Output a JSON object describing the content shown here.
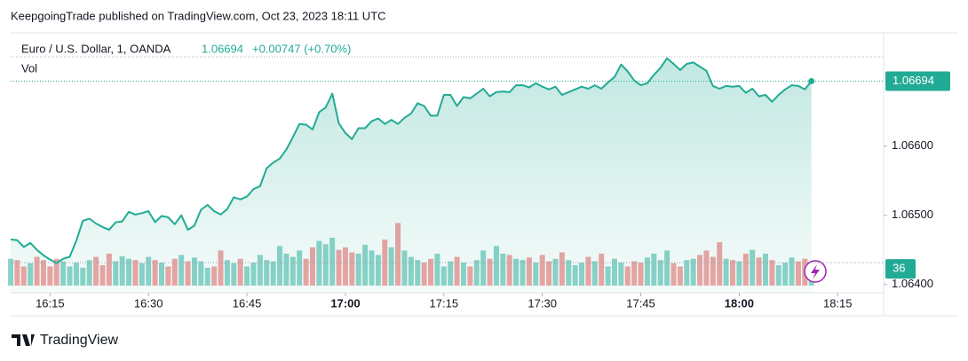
{
  "header": {
    "text": "KeepgoingTrade published on TradingView.com, Oct 23, 2023 18:11 UTC"
  },
  "footer": {
    "brand": "TradingView"
  },
  "chart_data": {
    "type": "area",
    "symbol": "Euro / U.S. Dollar, 1, OANDA",
    "last_price": "1.06694",
    "change": "+0.00747 (+0.70%)",
    "volume_label": "Vol",
    "color": "#22ab94",
    "x": [
      "16:09",
      "16:10",
      "16:11",
      "16:12",
      "16:13",
      "16:14",
      "16:15",
      "16:16",
      "16:17",
      "16:18",
      "16:19",
      "16:20",
      "16:21",
      "16:22",
      "16:23",
      "16:24",
      "16:25",
      "16:26",
      "16:27",
      "16:28",
      "16:29",
      "16:30",
      "16:31",
      "16:32",
      "16:33",
      "16:34",
      "16:35",
      "16:36",
      "16:37",
      "16:38",
      "16:39",
      "16:40",
      "16:41",
      "16:42",
      "16:43",
      "16:44",
      "16:45",
      "16:46",
      "16:47",
      "16:48",
      "16:49",
      "16:50",
      "16:51",
      "16:52",
      "16:53",
      "16:54",
      "16:55",
      "16:56",
      "16:57",
      "16:58",
      "16:59",
      "17:00",
      "17:01",
      "17:02",
      "17:03",
      "17:04",
      "17:05",
      "17:06",
      "17:07",
      "17:08",
      "17:09",
      "17:10",
      "17:11",
      "17:12",
      "17:13",
      "17:14",
      "17:15",
      "17:16",
      "17:17",
      "17:18",
      "17:19",
      "17:20",
      "17:21",
      "17:22",
      "17:23",
      "17:24",
      "17:25",
      "17:26",
      "17:27",
      "17:28",
      "17:29",
      "17:30",
      "17:31",
      "17:32",
      "17:33",
      "17:34",
      "17:35",
      "17:36",
      "17:37",
      "17:38",
      "17:39",
      "17:40",
      "17:41",
      "17:42",
      "17:43",
      "17:44",
      "17:45",
      "17:46",
      "17:47",
      "17:48",
      "17:49",
      "17:50",
      "17:51",
      "17:52",
      "17:53",
      "17:54",
      "17:55",
      "17:56",
      "17:57",
      "17:58",
      "17:59",
      "18:00",
      "18:01",
      "18:02",
      "18:03",
      "18:04",
      "18:05",
      "18:06",
      "18:07",
      "18:08",
      "18:09",
      "18:10",
      "18:11"
    ],
    "series": [
      {
        "name": "EURUSD",
        "color": "#22ab94",
        "values": [
          1.06465,
          1.06464,
          1.06454,
          1.0646,
          1.0645,
          1.06442,
          1.06436,
          1.06431,
          1.06437,
          1.0644,
          1.06463,
          1.06492,
          1.06495,
          1.06488,
          1.06483,
          1.06479,
          1.0649,
          1.06491,
          1.06505,
          1.06501,
          1.06503,
          1.06506,
          1.0649,
          1.06499,
          1.06497,
          1.06487,
          1.065,
          1.06479,
          1.06485,
          1.06508,
          1.06515,
          1.06506,
          1.06501,
          1.06509,
          1.06526,
          1.06523,
          1.06527,
          1.06538,
          1.06542,
          1.06568,
          1.06576,
          1.06582,
          1.06595,
          1.06613,
          1.06632,
          1.06631,
          1.06624,
          1.06649,
          1.06656,
          1.06676,
          1.06633,
          1.06619,
          1.0661,
          1.06626,
          1.06626,
          1.06636,
          1.0664,
          1.06632,
          1.06638,
          1.06632,
          1.06641,
          1.06647,
          1.06662,
          1.06658,
          1.06644,
          1.06644,
          1.06674,
          1.06674,
          1.06658,
          1.06671,
          1.06669,
          1.06676,
          1.06683,
          1.06672,
          1.06678,
          1.06679,
          1.06678,
          1.06688,
          1.06688,
          1.06685,
          1.06691,
          1.06686,
          1.06682,
          1.06686,
          1.06674,
          1.06678,
          1.06682,
          1.06686,
          1.06683,
          1.06688,
          1.06683,
          1.06692,
          1.067,
          1.06718,
          1.06708,
          1.06695,
          1.06688,
          1.06691,
          1.06703,
          1.06713,
          1.06727,
          1.06719,
          1.0671,
          1.06719,
          1.06721,
          1.06715,
          1.06709,
          1.06687,
          1.06683,
          1.06687,
          1.06686,
          1.06687,
          1.06677,
          1.06683,
          1.06672,
          1.06674,
          1.06664,
          1.06674,
          1.06682,
          1.06688,
          1.06687,
          1.06682,
          1.06694
        ]
      }
    ],
    "volume": {
      "up_color": "#8dd3c9",
      "down_color": "#f0a3a3",
      "values": [
        42,
        40,
        30,
        35,
        45,
        40,
        30,
        42,
        38,
        30,
        36,
        28,
        40,
        45,
        32,
        50,
        38,
        46,
        42,
        40,
        35,
        45,
        40,
        36,
        30,
        42,
        48,
        38,
        44,
        38,
        28,
        30,
        55,
        40,
        35,
        42,
        30,
        36,
        48,
        40,
        38,
        62,
        50,
        45,
        55,
        42,
        60,
        70,
        65,
        75,
        56,
        60,
        52,
        50,
        64,
        55,
        48,
        72,
        60,
        98,
        55,
        45,
        40,
        36,
        42,
        50,
        30,
        38,
        45,
        36,
        30,
        40,
        55,
        42,
        62,
        50,
        48,
        42,
        40,
        44,
        36,
        48,
        38,
        42,
        52,
        40,
        32,
        36,
        45,
        38,
        50,
        30,
        42,
        36,
        30,
        38,
        36,
        44,
        50,
        40,
        55,
        35,
        30,
        40,
        42,
        48,
        55,
        45,
        68,
        42,
        40,
        38,
        50,
        56,
        44,
        50,
        40,
        32,
        36,
        44,
        38,
        42,
        36
      ]
    },
    "xlim": [
      "16:09",
      "18:22"
    ],
    "xticks": [
      "16:15",
      "16:30",
      "16:45",
      "17:00",
      "17:15",
      "17:30",
      "17:45",
      "18:00",
      "18:15"
    ],
    "ylim": [
      1.06388,
      1.0676
    ],
    "yticks": [
      {
        "value": 1.064,
        "label": "1.06400"
      },
      {
        "value": 1.065,
        "label": "1.06500"
      },
      {
        "value": 1.066,
        "label": "1.06600"
      }
    ]
  }
}
